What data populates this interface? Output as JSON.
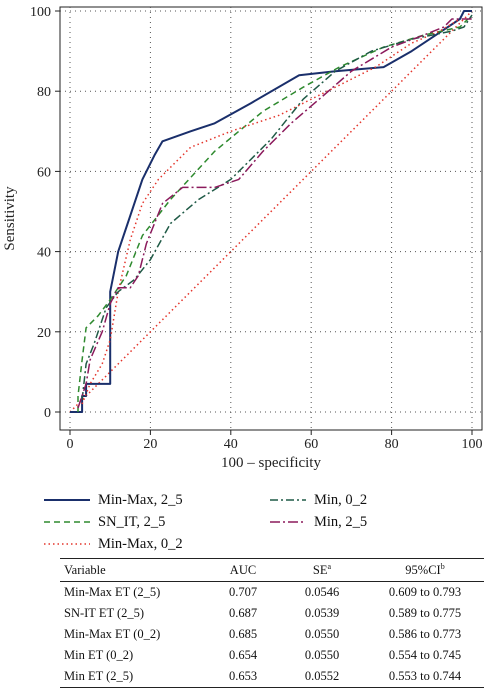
{
  "chart_data": {
    "type": "line",
    "xlabel": "100 – specificity",
    "ylabel": "Sensitivity",
    "xlim": [
      0,
      100
    ],
    "ylim": [
      0,
      100
    ],
    "x_ticks": [
      0,
      20,
      40,
      60,
      80,
      100
    ],
    "y_ticks": [
      0,
      20,
      40,
      60,
      80,
      100
    ],
    "grid": "dotted",
    "legend_position": "bottom",
    "series": [
      {
        "name": "Min-Max, 2_5",
        "color": "#1a2f6b",
        "dash": "solid",
        "points": [
          [
            0,
            0
          ],
          [
            2,
            0
          ],
          [
            3,
            0
          ],
          [
            3,
            4
          ],
          [
            4,
            4
          ],
          [
            4,
            7
          ],
          [
            10,
            7
          ],
          [
            10,
            30
          ],
          [
            12,
            40
          ],
          [
            14,
            46
          ],
          [
            18,
            58
          ],
          [
            21,
            64
          ],
          [
            23,
            67.5
          ],
          [
            30,
            70
          ],
          [
            36,
            72
          ],
          [
            45,
            77
          ],
          [
            57,
            84
          ],
          [
            66,
            85
          ],
          [
            78,
            86
          ],
          [
            85,
            90
          ],
          [
            91,
            94
          ],
          [
            97,
            98
          ],
          [
            98,
            100
          ],
          [
            100,
            100
          ]
        ]
      },
      {
        "name": "SN_IT, 2_5",
        "color": "#2e8a2e",
        "dash": "dashed",
        "points": [
          [
            2,
            0
          ],
          [
            2,
            4
          ],
          [
            3,
            13
          ],
          [
            4,
            21
          ],
          [
            7,
            24
          ],
          [
            10,
            28
          ],
          [
            14,
            34
          ],
          [
            18,
            44
          ],
          [
            25,
            53
          ],
          [
            36,
            65
          ],
          [
            48,
            75
          ],
          [
            58,
            81
          ],
          [
            67,
            86
          ],
          [
            78,
            91
          ],
          [
            88,
            94
          ],
          [
            97,
            96
          ],
          [
            99,
            98
          ]
        ]
      },
      {
        "name": "Min-Max, 0_2",
        "color": "#e4352b",
        "dash": "dotted",
        "points": [
          [
            3,
            2
          ],
          [
            5,
            7
          ],
          [
            8,
            12
          ],
          [
            10,
            18
          ],
          [
            12,
            30
          ],
          [
            15,
            43
          ],
          [
            18,
            52
          ],
          [
            22,
            58
          ],
          [
            30,
            66
          ],
          [
            40,
            70
          ],
          [
            52,
            74
          ],
          [
            64,
            80
          ],
          [
            76,
            86
          ],
          [
            85,
            92
          ],
          [
            92,
            95
          ],
          [
            97,
            98
          ]
        ]
      },
      {
        "name": "Min, 0_2",
        "color": "#1f5a46",
        "dash": "dashdot",
        "points": [
          [
            3,
            3
          ],
          [
            4,
            12
          ],
          [
            6,
            17
          ],
          [
            9,
            26
          ],
          [
            12,
            30
          ],
          [
            16,
            33
          ],
          [
            20,
            38
          ],
          [
            25,
            47
          ],
          [
            32,
            53
          ],
          [
            40,
            58
          ],
          [
            50,
            68
          ],
          [
            58,
            78
          ],
          [
            66,
            85
          ],
          [
            75,
            90
          ],
          [
            85,
            93
          ],
          [
            95,
            95
          ],
          [
            98,
            96
          ],
          [
            100,
            99
          ]
        ]
      },
      {
        "name": "Min, 2_5",
        "color": "#8b1a5c",
        "dash": "dashdotlong",
        "points": [
          [
            2,
            1
          ],
          [
            4,
            7
          ],
          [
            5,
            13
          ],
          [
            8,
            20
          ],
          [
            10,
            27
          ],
          [
            12,
            31
          ],
          [
            15,
            31
          ],
          [
            17,
            34
          ],
          [
            19,
            42
          ],
          [
            23,
            52
          ],
          [
            28,
            56
          ],
          [
            36,
            56
          ],
          [
            42,
            58
          ],
          [
            48,
            65
          ],
          [
            55,
            72
          ],
          [
            62,
            78
          ],
          [
            70,
            85
          ],
          [
            80,
            91
          ],
          [
            88,
            94
          ],
          [
            93,
            96
          ],
          [
            95,
            98
          ],
          [
            100,
            98
          ]
        ]
      },
      {
        "name": "",
        "color": "#e4352b",
        "dash": "dotted",
        "points": [
          [
            0,
            0
          ],
          [
            100,
            100
          ]
        ]
      }
    ]
  },
  "legend": {
    "items": [
      {
        "label": "Min-Max, 2_5",
        "color": "#1a2f6b",
        "dash": "solid"
      },
      {
        "label": "Min, 0_2",
        "color": "#1f5a46",
        "dash": "dashdot"
      },
      {
        "label": "SN_IT, 2_5",
        "color": "#2e8a2e",
        "dash": "dashed"
      },
      {
        "label": "Min, 2_5",
        "color": "#8b1a5c",
        "dash": "dashdotlong"
      },
      {
        "label": "Min-Max, 0_2",
        "color": "#e4352b",
        "dash": "dotted"
      }
    ]
  },
  "table": {
    "headers": {
      "variable": "Variable",
      "auc": "AUC",
      "se": "SE",
      "se_sup": "a",
      "ci": "95%CI",
      "ci_sup": "b"
    },
    "rows": [
      {
        "variable": "Min-Max ET (2_5)",
        "auc": "0.707",
        "se": "0.0546",
        "ci": "0.609 to 0.793"
      },
      {
        "variable": "SN-IT ET (2_5)",
        "auc": "0.687",
        "se": "0.0539",
        "ci": "0.589 to 0.775"
      },
      {
        "variable": "Min-Max ET (0_2)",
        "auc": "0.685",
        "se": "0.0550",
        "ci": "0.586 to 0.773"
      },
      {
        "variable": "Min ET (0_2)",
        "auc": "0.654",
        "se": "0.0550",
        "ci": "0.554 to 0.745"
      },
      {
        "variable": "Min ET (2_5)",
        "auc": "0.653",
        "se": "0.0552",
        "ci": "0.553 to 0.744"
      }
    ]
  }
}
